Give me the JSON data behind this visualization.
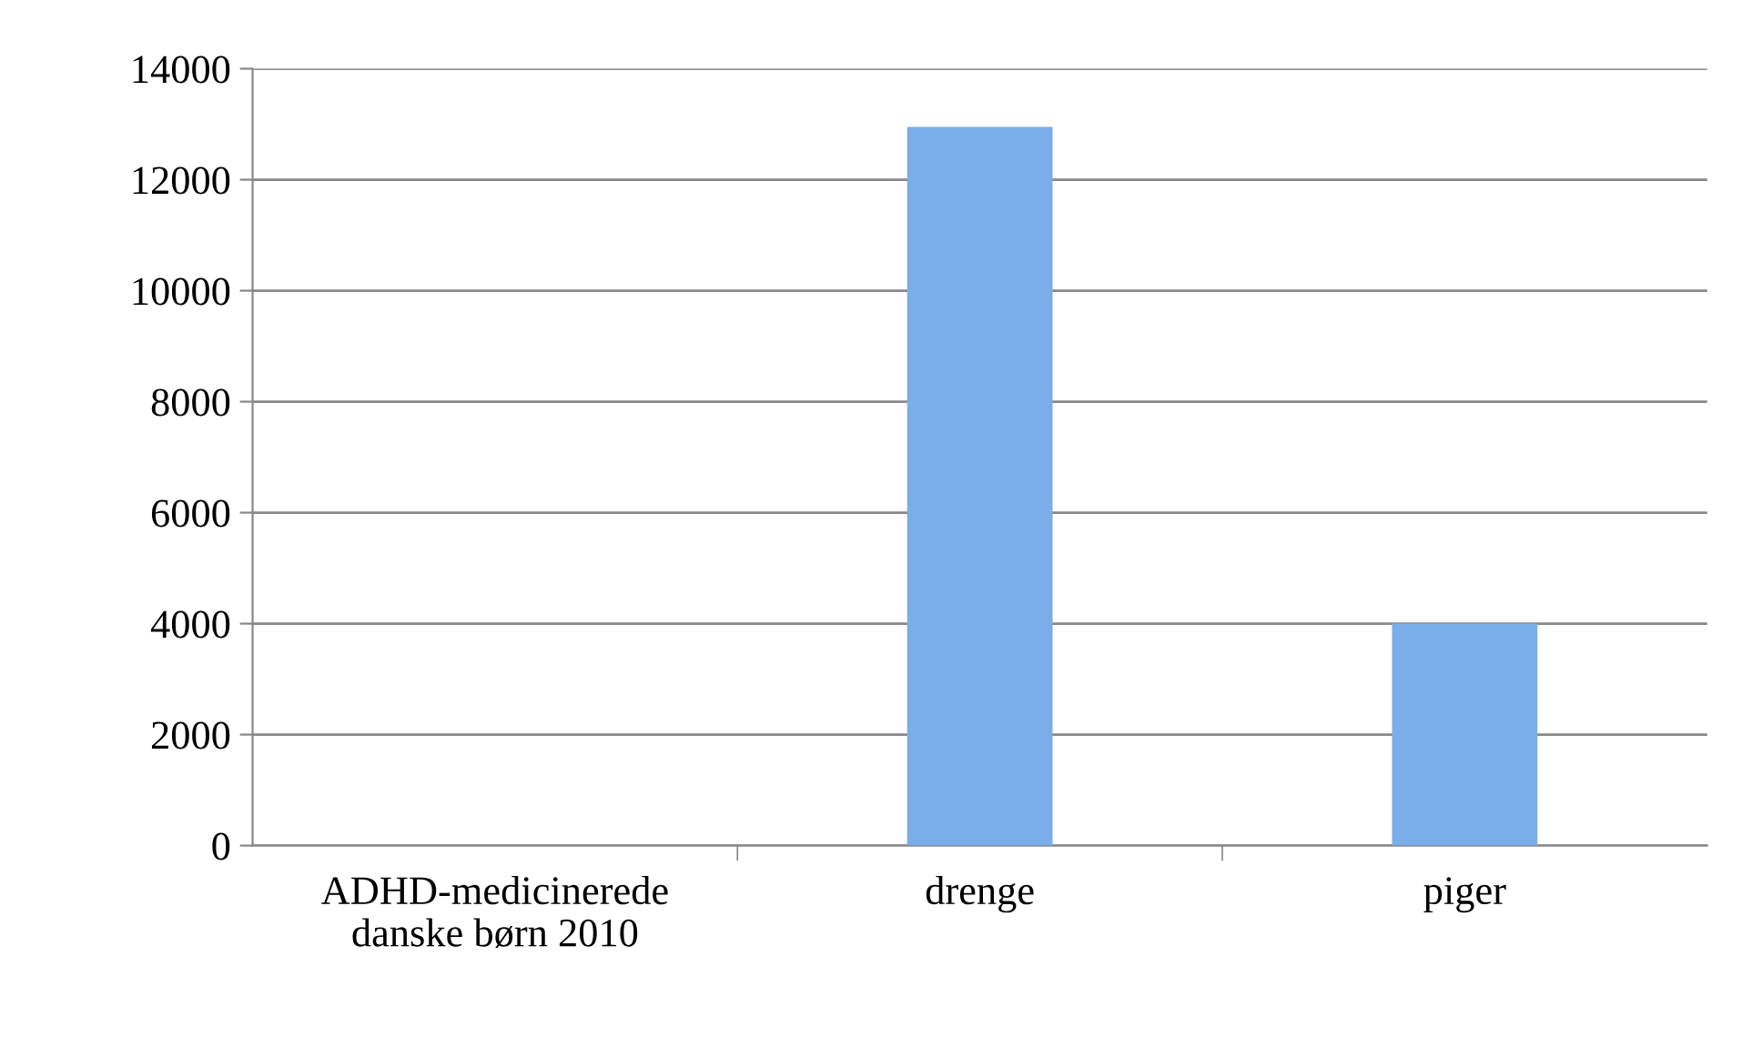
{
  "chart_data": {
    "type": "bar",
    "categories": [
      "ADHD-medicinerede\ndanske børn 2010",
      "drenge",
      "piger"
    ],
    "values": [
      null,
      12950,
      4000
    ],
    "color": "#79aeea",
    "ylim": [
      0,
      14000
    ],
    "yticks": [
      0,
      2000,
      4000,
      6000,
      8000,
      10000,
      12000,
      14000
    ],
    "grid": "y",
    "legend": false
  }
}
